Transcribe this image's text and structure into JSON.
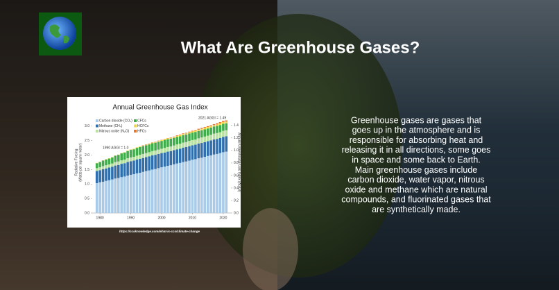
{
  "slide": {
    "title": "What Are Greenhouse Gases?",
    "paragraph": [
      "Greenhouse gases are gases that",
      "goes up in the atmosphere and is",
      "responsible for absorbing heat and",
      "releasing it in all directions, some goes",
      "in space and some back to Earth.",
      "Main greenhouse gases include",
      "carbon dioxide, water vapor, nitrous",
      "oxide and methane which are natural",
      "compounds, and fluorinated gases that",
      "are synthetically made."
    ],
    "source": "https://ccsknowledge.com/what-is-ccs/climate-change"
  },
  "chart_data": {
    "type": "stacked-bar",
    "title": "Annual Greenhouse Gas Index",
    "ylabel": [
      "Radiative Forcing",
      "(Watts per square meter)"
    ],
    "y2label": "Annual Greenhouse Gas Index (AGGI)",
    "annotations": [
      "2021 AGGI = 1.49",
      "1990 AGGI = 1.0"
    ],
    "x": [
      1979,
      1980,
      1981,
      1982,
      1983,
      1984,
      1985,
      1986,
      1987,
      1988,
      1989,
      1990,
      1991,
      1992,
      1993,
      1994,
      1995,
      1996,
      1997,
      1998,
      1999,
      2000,
      2001,
      2002,
      2003,
      2004,
      2005,
      2006,
      2007,
      2008,
      2009,
      2010,
      2011,
      2012,
      2013,
      2014,
      2015,
      2016,
      2017,
      2018,
      2019,
      2020,
      2021
    ],
    "xlim": [
      1977.5,
      2022.5
    ],
    "xticks": [
      1980,
      1990,
      2000,
      2010,
      2020
    ],
    "ylim": [
      0,
      3.5
    ],
    "yticks": [
      {
        "value": 0,
        "label": "0.0"
      },
      {
        "value": 0.5,
        "label": "0.5"
      },
      {
        "value": 1,
        "label": "1.0"
      },
      {
        "value": 1.5,
        "label": "1.5"
      },
      {
        "value": 2,
        "label": "2.0"
      },
      {
        "value": 2.5,
        "label": "2.5"
      },
      {
        "value": 3,
        "label": "3.0"
      }
    ],
    "y2lim": [
      0,
      1.62
    ],
    "y2ticks": [
      {
        "value": 0,
        "label": "0.0"
      },
      {
        "value": 0.2,
        "label": "0.2"
      },
      {
        "value": 0.4,
        "label": "0.4"
      },
      {
        "value": 0.6,
        "label": "0.6"
      },
      {
        "value": 0.8,
        "label": "0.8"
      },
      {
        "value": 1,
        "label": "1.0"
      },
      {
        "value": 1.2,
        "label": "1.2"
      },
      {
        "value": 1.4,
        "label": "1.4"
      }
    ],
    "series": [
      {
        "name": "Carbon dioxide (CO₂)",
        "color": "#a9cbe8",
        "values": [
          1.03,
          1.06,
          1.08,
          1.11,
          1.13,
          1.16,
          1.19,
          1.21,
          1.24,
          1.26,
          1.29,
          1.32,
          1.34,
          1.37,
          1.39,
          1.42,
          1.45,
          1.47,
          1.5,
          1.52,
          1.55,
          1.58,
          1.6,
          1.63,
          1.65,
          1.68,
          1.71,
          1.73,
          1.76,
          1.78,
          1.81,
          1.84,
          1.86,
          1.89,
          1.91,
          1.94,
          1.97,
          1.99,
          2.02,
          2.04,
          2.07,
          2.1,
          2.12
        ]
      },
      {
        "name": "Methane (CH₄)",
        "color": "#2f6fad",
        "values": [
          0.42,
          0.42,
          0.43,
          0.43,
          0.44,
          0.44,
          0.45,
          0.45,
          0.46,
          0.46,
          0.47,
          0.47,
          0.47,
          0.48,
          0.48,
          0.48,
          0.48,
          0.49,
          0.49,
          0.49,
          0.49,
          0.49,
          0.49,
          0.49,
          0.49,
          0.49,
          0.49,
          0.49,
          0.5,
          0.5,
          0.5,
          0.5,
          0.5,
          0.51,
          0.51,
          0.51,
          0.51,
          0.52,
          0.52,
          0.52,
          0.52,
          0.53,
          0.53
        ]
      },
      {
        "name": "Nitrous oxide (N₂O)",
        "color": "#b8e0a0",
        "values": [
          0.1,
          0.1,
          0.11,
          0.11,
          0.11,
          0.11,
          0.12,
          0.12,
          0.12,
          0.12,
          0.13,
          0.13,
          0.13,
          0.13,
          0.14,
          0.14,
          0.14,
          0.14,
          0.15,
          0.15,
          0.15,
          0.15,
          0.16,
          0.16,
          0.16,
          0.16,
          0.17,
          0.17,
          0.17,
          0.17,
          0.18,
          0.18,
          0.18,
          0.18,
          0.19,
          0.19,
          0.19,
          0.19,
          0.2,
          0.2,
          0.2,
          0.21,
          0.21
        ]
      },
      {
        "name": "CFCs",
        "color": "#3fae4a",
        "values": [
          0.17,
          0.18,
          0.19,
          0.2,
          0.2,
          0.21,
          0.22,
          0.23,
          0.24,
          0.25,
          0.25,
          0.26,
          0.26,
          0.27,
          0.27,
          0.27,
          0.27,
          0.27,
          0.27,
          0.27,
          0.27,
          0.27,
          0.27,
          0.27,
          0.27,
          0.26,
          0.26,
          0.26,
          0.26,
          0.26,
          0.26,
          0.26,
          0.26,
          0.25,
          0.25,
          0.25,
          0.25,
          0.25,
          0.25,
          0.25,
          0.25,
          0.24,
          0.24
        ]
      },
      {
        "name": "HCFCs",
        "color": "#f2d84a",
        "values": [
          0.01,
          0.01,
          0.01,
          0.01,
          0.01,
          0.01,
          0.01,
          0.01,
          0.01,
          0.01,
          0.02,
          0.02,
          0.02,
          0.02,
          0.02,
          0.02,
          0.02,
          0.02,
          0.02,
          0.02,
          0.03,
          0.03,
          0.03,
          0.03,
          0.03,
          0.03,
          0.03,
          0.04,
          0.04,
          0.04,
          0.04,
          0.04,
          0.04,
          0.05,
          0.05,
          0.05,
          0.05,
          0.05,
          0.05,
          0.05,
          0.06,
          0.06,
          0.06
        ]
      },
      {
        "name": "HFCs",
        "color": "#e8762c",
        "values": [
          0.0,
          0.0,
          0.0,
          0.0,
          0.0,
          0.0,
          0.0,
          0.0,
          0.0,
          0.0,
          0.0,
          0.0,
          0.0,
          0.0,
          0.0,
          0.01,
          0.01,
          0.01,
          0.01,
          0.01,
          0.01,
          0.01,
          0.01,
          0.01,
          0.01,
          0.02,
          0.02,
          0.02,
          0.02,
          0.02,
          0.02,
          0.02,
          0.02,
          0.03,
          0.03,
          0.03,
          0.03,
          0.03,
          0.03,
          0.04,
          0.04,
          0.04,
          0.04
        ]
      }
    ]
  }
}
